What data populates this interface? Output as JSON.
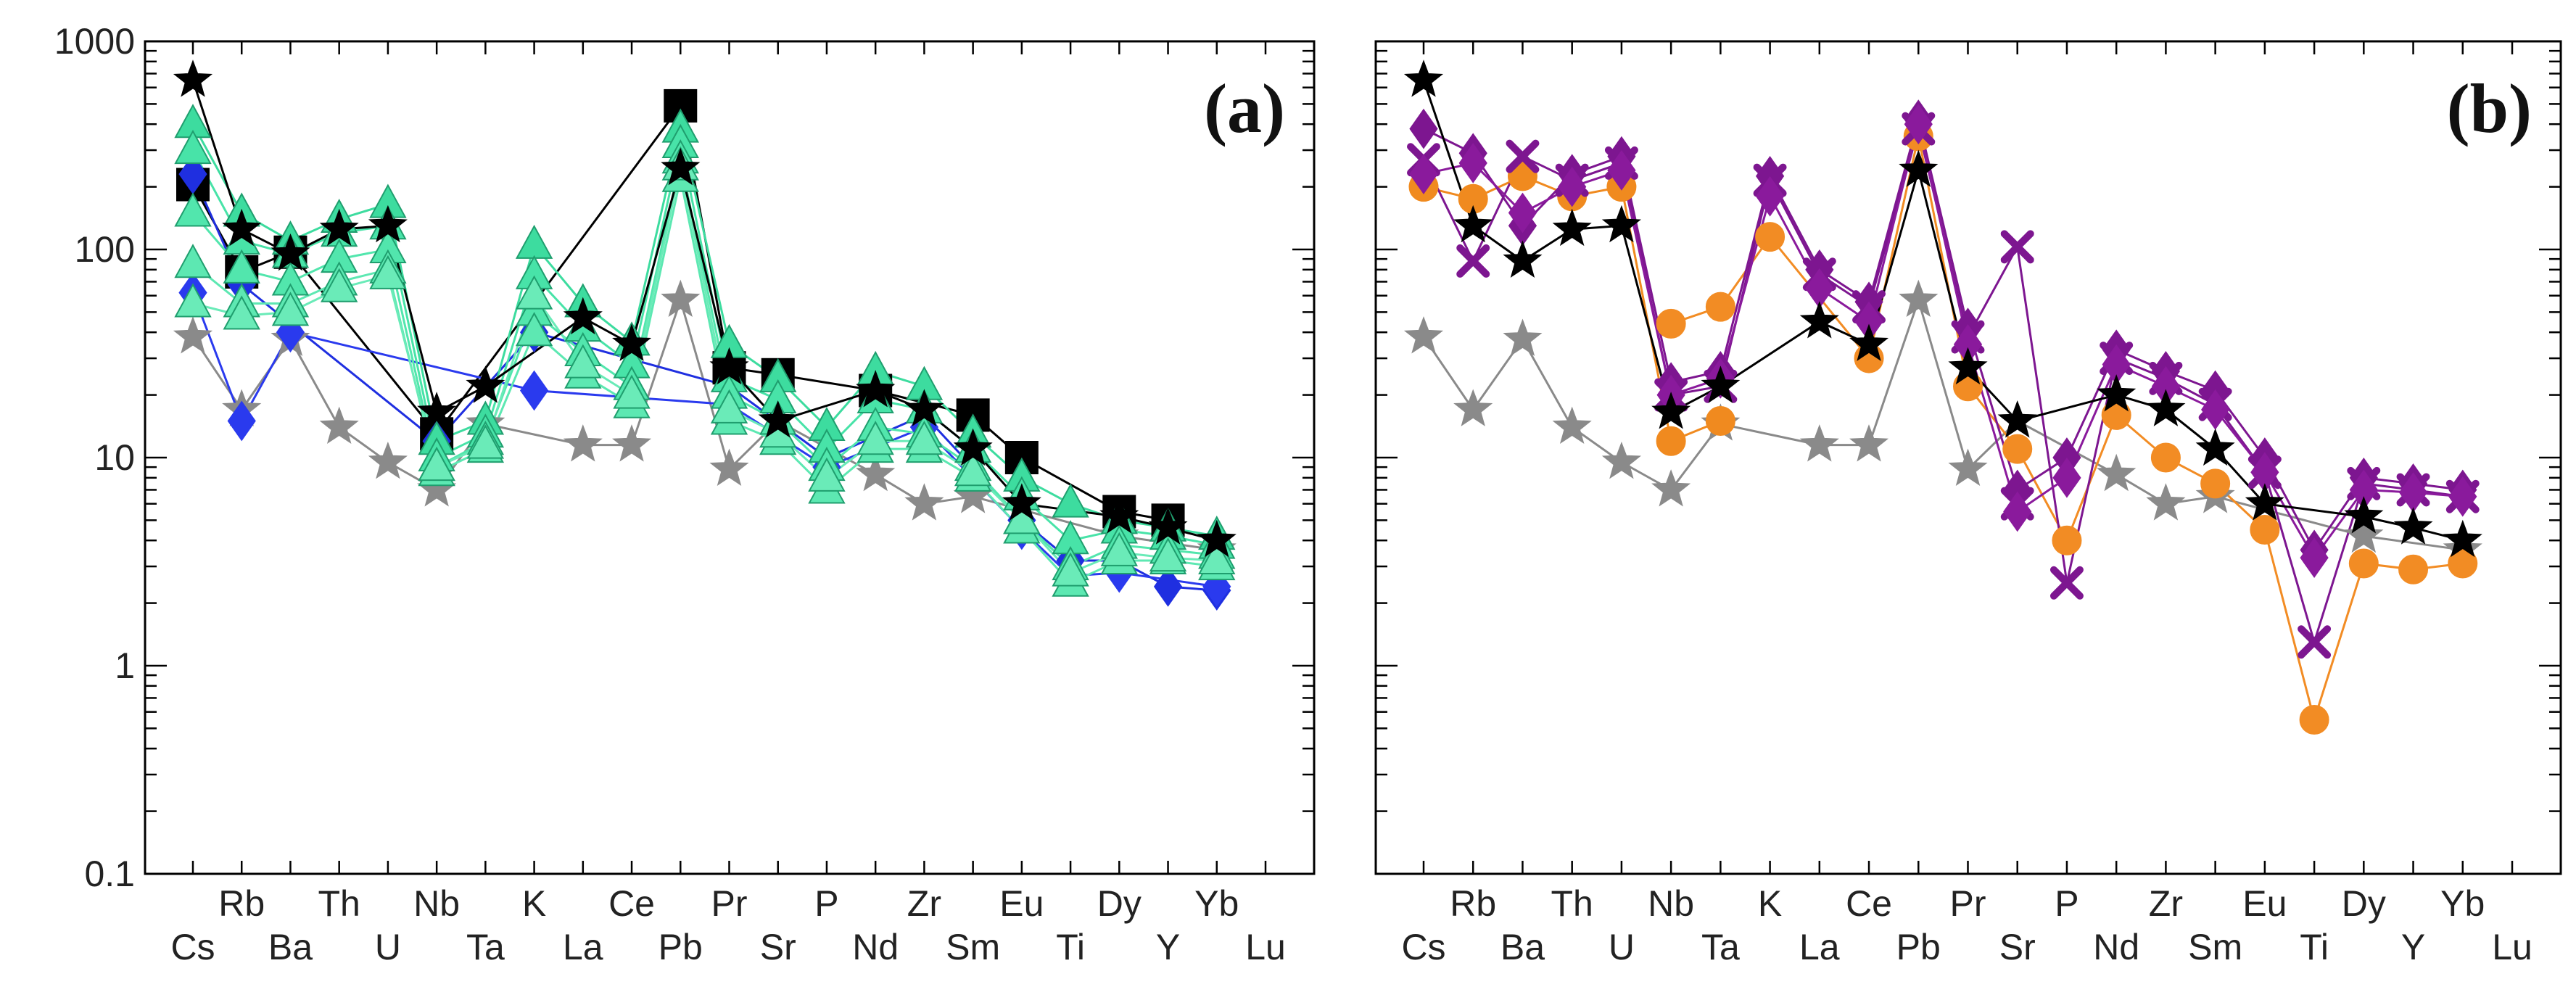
{
  "chart_data": {
    "type": "line",
    "yscale": "log",
    "ylim": [
      0.1,
      1000
    ],
    "yticks": [
      {
        "value": 1000,
        "label": "1000"
      },
      {
        "value": 100,
        "label": "100"
      },
      {
        "value": 10,
        "label": "10"
      },
      {
        "value": 1,
        "label": "1"
      },
      {
        "value": 0.1,
        "label": "0.1"
      }
    ],
    "elements": [
      "Cs",
      "Rb",
      "Ba",
      "Th",
      "U",
      "Nb",
      "Ta",
      "K",
      "La",
      "Ce",
      "Pb",
      "Pr",
      "Sr",
      "P",
      "Nd",
      "Zr",
      "Sm",
      "Eu",
      "Ti",
      "Dy",
      "Y",
      "Yb",
      "Lu"
    ],
    "panels": [
      {
        "label": "(a)",
        "series": [
          {
            "name": "reference (grey)",
            "color": "#8a8a8a",
            "marker": "star",
            "values": [
              38,
              17,
              37,
              14,
              9.5,
              7,
              14.5,
              null,
              11.5,
              11.5,
              57,
              8.8,
              15,
              null,
              8.3,
              6,
              6.5,
              null,
              null,
              4.2,
              null,
              3.6,
              null
            ]
          },
          {
            "name": "black squares",
            "color": "#000000",
            "marker": "square",
            "values": [
              205,
              78,
              97,
              null,
              null,
              13,
              null,
              null,
              null,
              null,
              490,
              27,
              25,
              null,
              21,
              null,
              16,
              10,
              null,
              5.5,
              5,
              null,
              null
            ]
          },
          {
            "name": "blue diamonds 1",
            "color": "#1f2fe0",
            "marker": "diamond",
            "values": [
              230,
              68,
              null,
              null,
              null,
              12,
              null,
              40,
              null,
              null,
              null,
              22,
              null,
              10,
              null,
              16,
              null,
              5,
              3.2,
              3.2,
              2.4,
              2.3,
              null
            ]
          },
          {
            "name": "blue diamonds 2",
            "color": "#2a3aee",
            "marker": "diamond",
            "values": [
              62,
              15,
              40,
              null,
              null,
              null,
              null,
              21,
              null,
              null,
              null,
              18,
              null,
              9,
              null,
              14,
              null,
              4.5,
              2.7,
              2.8,
              null,
              2.4,
              null
            ]
          },
          {
            "name": "teal triangles 1",
            "color": "#3ddc9f",
            "marker": "triangle",
            "values": [
              400,
              150,
              110,
              140,
              165,
              12,
              15,
              105,
              55,
              36,
              380,
              35,
              24,
              14,
              26,
              22,
              13,
              8,
              6,
              5,
              4.6,
              4.2,
              null
            ]
          },
          {
            "name": "teal triangles 2",
            "color": "#48e3a8",
            "marker": "triangle",
            "values": [
              300,
              110,
              95,
              120,
              130,
              10,
              13,
              75,
              42,
              28,
              320,
              24,
              19,
              11,
              19,
              17,
              11,
              6.5,
              4,
              4.5,
              4.2,
              3.8,
              null
            ]
          },
          {
            "name": "teal triangles 3",
            "color": "#52e6ad",
            "marker": "triangle",
            "values": [
              150,
              80,
              70,
              90,
              100,
              9,
              12,
              50,
              32,
              22,
              270,
              20,
              15,
              9,
              14,
              13,
              9,
              5,
              3,
              3.8,
              3.6,
              3.4,
              null
            ]
          },
          {
            "name": "teal triangles 4",
            "color": "#5de8b2",
            "marker": "triangle",
            "values": [
              85,
              55,
              55,
              70,
              80,
              8.5,
              11,
              40,
              25,
              18,
              220,
              15,
              12,
              7,
              11,
              11,
              8,
              4.5,
              2.5,
              3.2,
              3.2,
              3,
              null
            ]
          },
          {
            "name": "teal triangles 5",
            "color": "#6aebb8",
            "marker": "triangle",
            "values": [
              55,
              48,
              50,
              65,
              75,
              9,
              11.5,
              60,
              28,
              20,
              250,
              17,
              13,
              8,
              12,
              12,
              8.5,
              5,
              2.8,
              3.5,
              3.3,
              3.2,
              null
            ]
          },
          {
            "name": "reference (black stars)",
            "color": "#000000",
            "marker": "star",
            "values": [
              650,
              125,
              95,
              125,
              130,
              16.5,
              22,
              null,
              47,
              35,
              245,
              27,
              15,
              null,
              21,
              17,
              11,
              6,
              null,
              5.2,
              4.6,
              4,
              null
            ]
          }
        ]
      },
      {
        "label": "(b)",
        "series": [
          {
            "name": "reference (grey)",
            "color": "#8a8a8a",
            "marker": "star",
            "values": [
              38,
              17,
              37,
              14,
              9.5,
              7,
              14.5,
              null,
              11.5,
              11.5,
              57,
              8.8,
              15,
              null,
              8.3,
              6,
              6.5,
              null,
              null,
              4.2,
              null,
              3.6,
              null
            ]
          },
          {
            "name": "orange circles",
            "color": "#f08a1f",
            "marker": "circle",
            "values": [
              200,
              175,
              225,
              180,
              200,
              12,
              15,
              null,
              null,
              null,
              null,
              null,
              null,
              null,
              null,
              null,
              null,
              null,
              null,
              null,
              null,
              null,
              null
            ]
          },
          {
            "name": "orange circles 2",
            "color": "#f28c24",
            "marker": "circle",
            "values": [
              null,
              null,
              null,
              null,
              null,
              44,
              53,
              115,
              null,
              30,
              350,
              22,
              11,
              4,
              16,
              10,
              7.5,
              4.5,
              0.55,
              3.1,
              2.9,
              3.1,
              null
            ]
          },
          {
            "name": "purple crosses",
            "color": "#7d1690",
            "marker": "x",
            "values": [
              270,
              88,
              280,
              215,
              260,
              20,
              22,
              215,
              76,
              53,
              380,
              38,
              103,
              2.5,
              30,
              24,
              18,
              8.5,
              1.3,
              7.5,
              7,
              6.5,
              null
            ]
          },
          {
            "name": "purple crosses 2",
            "color": "#7d1690",
            "marker": "x",
            "values": [
              null,
              null,
              null,
              null,
              null,
              null,
              null,
              null,
              null,
              null,
              null,
              null,
              6,
              null,
              null,
              null,
              null,
              null,
              null,
              null,
              null,
              null,
              null
            ]
          },
          {
            "name": "purple diamonds 1",
            "color": "#7d1690",
            "marker": "diamond",
            "values": [
              380,
              290,
              130,
              230,
              280,
              23,
              26,
              225,
              80,
              56,
              420,
              42,
              7,
              10,
              33,
              26,
              21,
              10,
              3.6,
              8,
              7.5,
              7,
              null
            ]
          },
          {
            "name": "purple diamonds 2",
            "color": "#8a1a9c",
            "marker": "diamond",
            "values": [
              230,
              260,
              150,
              200,
              240,
              20,
              24,
              180,
              65,
              45,
              400,
              35,
              5.5,
              8,
              28,
              22,
              17,
              8.5,
              3.3,
              7,
              6.8,
              6.5,
              null
            ]
          },
          {
            "name": "reference (black stars)",
            "color": "#000000",
            "marker": "star",
            "values": [
              650,
              130,
              88,
              125,
              130,
              16.5,
              22,
              null,
              45,
              35,
              240,
              27,
              15,
              null,
              20,
              17,
              11,
              6,
              null,
              5.2,
              4.6,
              4,
              null
            ]
          }
        ]
      }
    ]
  }
}
